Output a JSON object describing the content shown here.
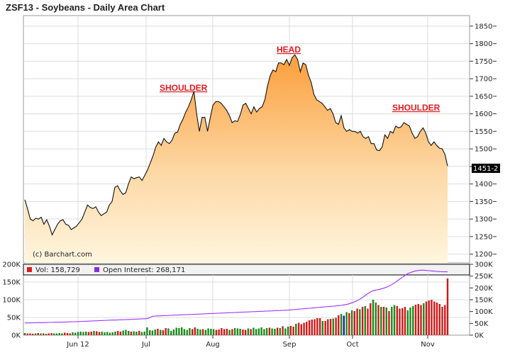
{
  "title": "ZSF13 - Soybeans - Daily Area Chart",
  "credit": "(c) Barchart.com",
  "last_price_label": "1451-2",
  "chart_data": [
    {
      "type": "area",
      "panel": "price",
      "title": "ZSF13 - Soybeans - Daily Area Chart",
      "ylim": [
        1175,
        1880
      ],
      "yticks": [
        "1850",
        "1800",
        "1750",
        "1700",
        "1650",
        "1600",
        "1550",
        "1500",
        "1450",
        "1400",
        "1350",
        "1300",
        "1250",
        "1200"
      ],
      "xticks": [
        "Jun 12",
        "Jul",
        "Aug",
        "Sep",
        "Oct",
        "Nov"
      ],
      "grid": true,
      "annotations": [
        "SHOULDER",
        "HEAD",
        "SHOULDER"
      ],
      "series": [
        {
          "values": [
            1355,
            1330,
            1300,
            1295,
            1302,
            1300,
            1305,
            1285,
            1298,
            1280,
            1255,
            1270,
            1285,
            1295,
            1298,
            1285,
            1282,
            1270,
            1275,
            1280,
            1290,
            1300,
            1320,
            1340,
            1333,
            1330,
            1335,
            1320,
            1310,
            1315,
            1320,
            1340,
            1350,
            1390,
            1395,
            1380,
            1370,
            1375,
            1400,
            1420,
            1415,
            1418,
            1420,
            1410,
            1425,
            1440,
            1460,
            1480,
            1505,
            1520,
            1510,
            1530,
            1520,
            1515,
            1525,
            1545,
            1548,
            1570,
            1585,
            1605,
            1620,
            1640,
            1665,
            1600,
            1550,
            1590,
            1590,
            1550,
            1590,
            1625,
            1635,
            1635,
            1630,
            1620,
            1610,
            1595,
            1575,
            1580,
            1578,
            1598,
            1625,
            1630,
            1615,
            1600,
            1620,
            1605,
            1615,
            1620,
            1640,
            1680,
            1710,
            1725,
            1720,
            1745,
            1745,
            1740,
            1755,
            1738,
            1760,
            1768,
            1755,
            1720,
            1745,
            1740,
            1710,
            1690,
            1655,
            1640,
            1635,
            1630,
            1620,
            1610,
            1615,
            1600,
            1575,
            1570,
            1595,
            1560,
            1550,
            1555,
            1550,
            1550,
            1545,
            1550,
            1535,
            1530,
            1535,
            1515,
            1515,
            1497,
            1495,
            1505,
            1540,
            1530,
            1550,
            1545,
            1565,
            1560,
            1563,
            1575,
            1570,
            1565,
            1545,
            1530,
            1535,
            1550,
            1560,
            1545,
            1520,
            1510,
            1520,
            1510,
            1502,
            1500,
            1485,
            1451
          ]
        }
      ]
    },
    {
      "type": "bar",
      "panel": "volume",
      "ylim_left": [
        0,
        200000
      ],
      "yticks_left": [
        "200K",
        "150K",
        "100K",
        "50K",
        "0K"
      ],
      "ylim_right": [
        0,
        300000
      ],
      "yticks_right": [
        "300K",
        "250K",
        "200K",
        "150K",
        "100K",
        "50K",
        "0K"
      ],
      "legend": [
        "Vol: 158,729",
        "Open Interest: 268,171"
      ],
      "series": [
        {
          "name": "Vol: 158,729",
          "values": [
            6000,
            5000,
            5000,
            4000,
            5000,
            6000,
            5000,
            5000,
            4000,
            5000,
            6000,
            5000,
            5000,
            6000,
            5000,
            7000,
            6000,
            5000,
            8000,
            7000,
            9000,
            10000,
            9000,
            10000,
            9000,
            10000,
            12000,
            11000,
            9000,
            10000,
            8000,
            9000,
            7000,
            8000,
            10000,
            12000,
            10000,
            13000,
            15000,
            12000,
            10000,
            11000,
            10000,
            12000,
            9000,
            10000,
            22000,
            14000,
            13000,
            16000,
            18000,
            15000,
            14000,
            20000,
            19000,
            12000,
            16000,
            21000,
            20000,
            22000,
            17000,
            15000,
            20000,
            17000,
            22000,
            18000,
            16000,
            17000,
            15000,
            19000,
            18000,
            17000,
            15000,
            16000,
            20000,
            17000,
            18000,
            15000,
            17000,
            20000,
            19000,
            18000,
            16000,
            15000,
            19000,
            17000,
            21000,
            17000,
            19000,
            22000,
            17000,
            20000,
            21000,
            19000,
            18000,
            21000,
            20000,
            25000,
            19000,
            24000,
            26000,
            24000,
            32000,
            35000,
            31000,
            35000,
            38000,
            42000,
            44000,
            45000,
            48000,
            48000,
            40000,
            40000,
            45000,
            46000,
            47000,
            49000,
            56000,
            60000,
            55000,
            65000,
            62000,
            70000,
            68000,
            75000,
            73000,
            80000,
            82000,
            75000,
            90000,
            100000,
            92000,
            85000,
            80000,
            80000,
            78000,
            68000,
            80000,
            85000,
            82000,
            75000,
            76000,
            80000,
            70000,
            78000,
            82000,
            86000,
            88000,
            85000,
            90000,
            95000,
            98000,
            100000,
            95000,
            92000,
            88000,
            80000,
            85000,
            160000
          ]
        },
        {
          "name": "Open Interest: 268,171",
          "values": [
            52000,
            52000,
            52000,
            52500,
            52500,
            53000,
            53000,
            53500,
            53500,
            54000,
            54000,
            54500,
            54500,
            55000,
            55000,
            55500,
            56000,
            56500,
            57000,
            57000,
            57500,
            58000,
            58500,
            59000,
            59500,
            60000,
            60500,
            61000,
            61500,
            62000,
            62500,
            63000,
            63500,
            64000,
            64000,
            64500,
            65000,
            65500,
            66000,
            66500,
            67000,
            67500,
            68000,
            68500,
            69000,
            69500,
            70000,
            74000,
            80000,
            81000,
            81500,
            82000,
            82500,
            83000,
            83500,
            84000,
            84500,
            85000,
            85500,
            86000,
            86500,
            87000,
            87500,
            88000,
            88500,
            89000,
            89500,
            90000,
            90500,
            91000,
            91500,
            92000,
            92500,
            93000,
            93500,
            94000,
            94500,
            95000,
            95500,
            96000,
            96500,
            97000,
            97500,
            98000,
            98500,
            99000,
            99500,
            100000,
            100500,
            101000,
            101500,
            102000,
            102500,
            103000,
            103500,
            104000,
            104500,
            105000,
            105500,
            106000,
            107000,
            108000,
            109000,
            110000,
            111000,
            112000,
            113000,
            114000,
            115000,
            116000,
            117000,
            118000,
            119000,
            120000,
            121000,
            122000,
            123000,
            124000,
            125000,
            126000,
            128000,
            130000,
            133000,
            137000,
            141000,
            146000,
            152000,
            160000,
            168000,
            176000,
            183000,
            188000,
            191000,
            193000,
            196000,
            199000,
            203000,
            208000,
            214000,
            221000,
            229000,
            237000,
            245000,
            253000,
            260000,
            265000,
            269000,
            272000,
            274000,
            275000,
            275000,
            274000,
            273000,
            272000,
            271000,
            270000,
            269000,
            268500,
            268300,
            268171
          ]
        }
      ]
    }
  ]
}
